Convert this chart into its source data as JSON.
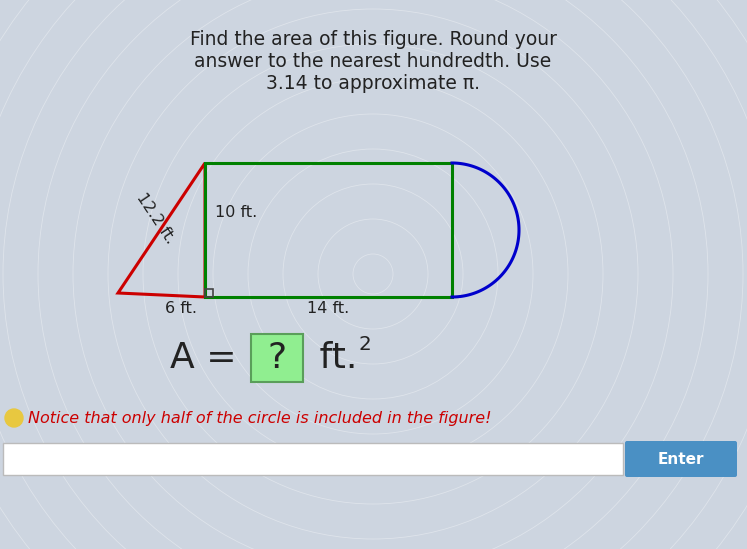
{
  "title_line1": "Find the area of this figure. Round your",
  "title_line2": "answer to the nearest hundredth. Use",
  "title_line3": "3.14 to approximate π.",
  "bg_color": "#cdd5e0",
  "fig_width": 7.47,
  "fig_height": 5.49,
  "triangle_color": "#cc0000",
  "rect_color": "#008000",
  "semicircle_color": "#0000cc",
  "label_12_2": "12.2 ft.",
  "label_10": "10 ft.",
  "label_6": "6 ft.",
  "label_14": "14 ft.",
  "hint_text": "Notice that only half of the circle is included in the figure!",
  "hint_color": "#cc0000",
  "answer_box_color": "#90ee90",
  "answer_box_border": "#5a9e5a",
  "enter_button_color": "#4a90c4",
  "enter_button_text": "Enter",
  "bulb_color": "#e8c840",
  "title_fontsize": 13.5,
  "label_fontsize": 11.5,
  "formula_fontsize": 26
}
